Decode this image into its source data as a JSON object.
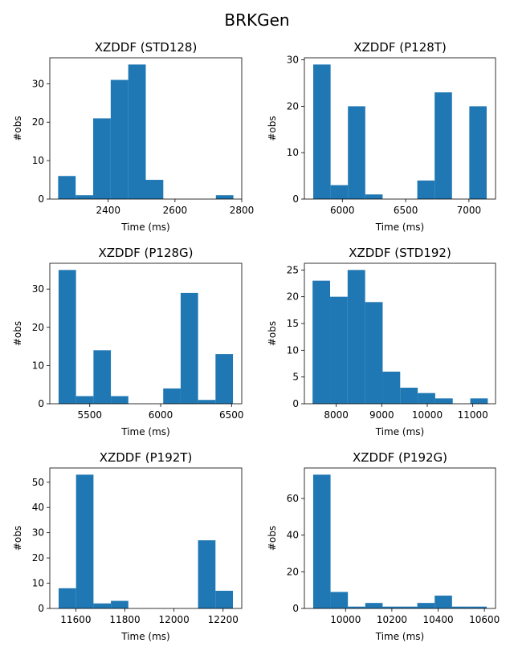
{
  "figure_title": "BRKGen",
  "colors": {
    "bar": "#1f77b4"
  },
  "chart_data": [
    {
      "type": "bar",
      "title": "XZDDF (STD128)",
      "xlabel": "Time (ms)",
      "ylabel": "#obs",
      "bin_edges": [
        2250,
        2302.5,
        2355,
        2407.5,
        2460,
        2512.5,
        2565,
        2617.5,
        2670,
        2722.5,
        2775
      ],
      "values": [
        6,
        1,
        21,
        31,
        35,
        5,
        0,
        0,
        0,
        1
      ],
      "xlim": [
        2225,
        2800
      ],
      "ylim": [
        0,
        36.75
      ],
      "xticks": [
        2400,
        2600,
        2800
      ],
      "yticks": [
        0,
        10,
        20,
        30
      ]
    },
    {
      "type": "bar",
      "title": "XZDDF (P128T)",
      "xlabel": "Time (ms)",
      "ylabel": "#obs",
      "bin_edges": [
        5770,
        5907,
        6044,
        6181,
        6318,
        6455,
        6592,
        6729,
        6866,
        7003,
        7140
      ],
      "values": [
        29,
        3,
        20,
        1,
        0,
        0,
        4,
        23,
        0,
        20
      ],
      "xlim": [
        5700,
        7210
      ],
      "ylim": [
        0,
        30.45
      ],
      "xticks": [
        6000,
        6500,
        7000
      ],
      "yticks": [
        0,
        10,
        20,
        30
      ]
    },
    {
      "type": "bar",
      "title": "XZDDF (P128G)",
      "xlabel": "Time (ms)",
      "ylabel": "#obs",
      "bin_edges": [
        5280,
        5403,
        5526,
        5649,
        5772,
        5895,
        6018,
        6141,
        6264,
        6387,
        6510
      ],
      "values": [
        35,
        2,
        14,
        2,
        0,
        0,
        4,
        29,
        1,
        13
      ],
      "xlim": [
        5218,
        6572
      ],
      "ylim": [
        0,
        36.75
      ],
      "xticks": [
        5500,
        6000,
        6500
      ],
      "yticks": [
        0,
        10,
        20,
        30
      ]
    },
    {
      "type": "bar",
      "title": "XZDDF (STD192)",
      "xlabel": "Time (ms)",
      "ylabel": "#obs",
      "bin_edges": [
        7480,
        7865,
        8250,
        8635,
        9020,
        9405,
        9790,
        10175,
        10560,
        10945,
        11330
      ],
      "values": [
        23,
        20,
        25,
        19,
        6,
        3,
        2,
        1,
        0,
        1
      ],
      "xlim": [
        7300,
        11500
      ],
      "ylim": [
        0,
        26.25
      ],
      "xticks": [
        8000,
        9000,
        10000,
        11000
      ],
      "yticks": [
        0,
        5,
        10,
        15,
        20,
        25
      ]
    },
    {
      "type": "bar",
      "title": "XZDDF (P192T)",
      "xlabel": "Time (ms)",
      "ylabel": "#obs",
      "bin_edges": [
        11530,
        11601,
        11672,
        11743,
        11814,
        11885,
        11956,
        12027,
        12098,
        12169,
        12240
      ],
      "values": [
        8,
        53,
        2,
        3,
        0,
        0,
        0,
        0,
        27,
        7
      ],
      "xlim": [
        11494,
        12276
      ],
      "ylim": [
        0,
        55.65
      ],
      "xticks": [
        11600,
        11800,
        12000,
        12200
      ],
      "yticks": [
        0,
        10,
        20,
        30,
        40,
        50
      ]
    },
    {
      "type": "bar",
      "title": "XZDDF (P192G)",
      "xlabel": "Time (ms)",
      "ylabel": "#obs",
      "bin_edges": [
        9860,
        9935,
        10010,
        10085,
        10160,
        10235,
        10310,
        10385,
        10460,
        10535,
        10610
      ],
      "values": [
        73,
        9,
        1,
        3,
        1,
        1,
        3,
        7,
        1,
        1
      ],
      "xlim": [
        9822,
        10648
      ],
      "ylim": [
        0,
        76.65
      ],
      "xticks": [
        10000,
        10200,
        10400,
        10600
      ],
      "yticks": [
        0,
        20,
        40,
        60
      ]
    }
  ]
}
